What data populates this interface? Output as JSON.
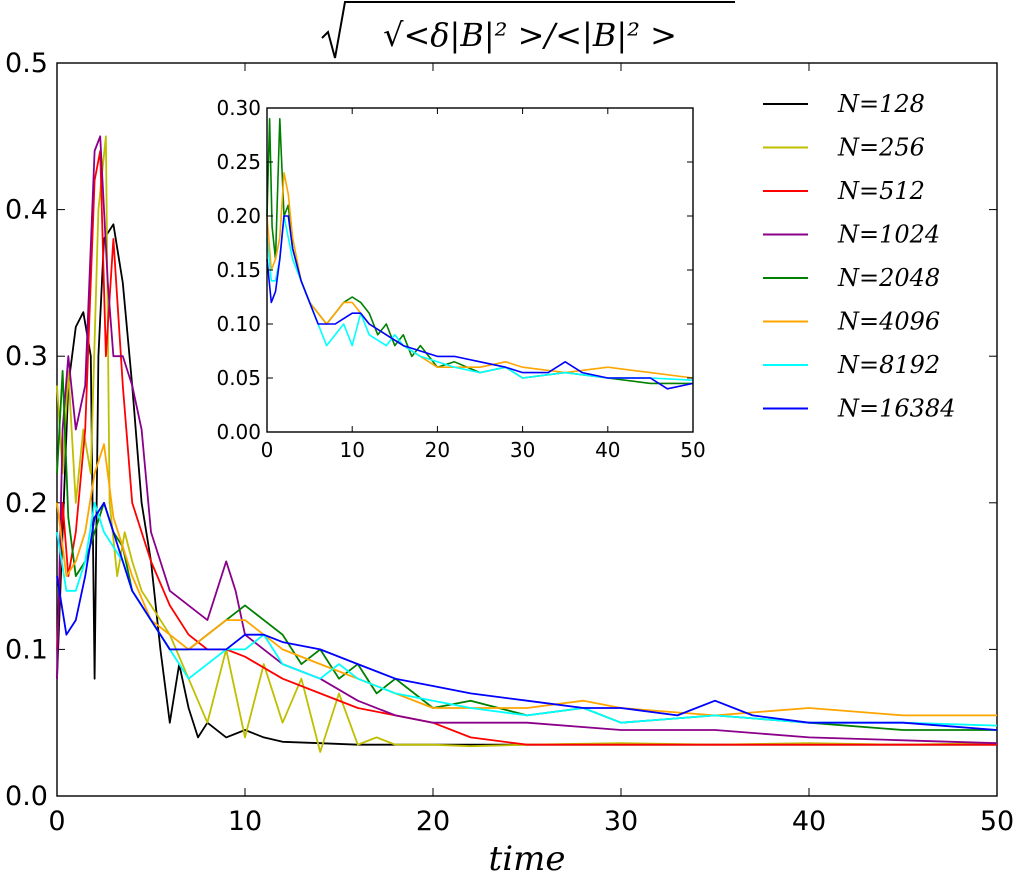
{
  "chart_data": [
    {
      "type": "line",
      "title": "√<δ|B|² >/<|B|² >",
      "xlabel": "time",
      "ylabel": "",
      "xlim": [
        0,
        50
      ],
      "ylim": [
        0,
        0.5
      ],
      "xticks": [
        "0",
        "10",
        "20",
        "30",
        "40",
        "50"
      ],
      "yticks": [
        "0.0",
        "0.1",
        "0.2",
        "0.3",
        "0.4",
        "0.5"
      ],
      "grid": false,
      "legend_position": "top-right",
      "series": [
        {
          "name": "N=128",
          "color": "#000000",
          "x": [
            0,
            0.3,
            0.6,
            1.0,
            1.4,
            1.8,
            2.0,
            2.2,
            2.5,
            3.0,
            3.5,
            4.0,
            4.5,
            5.0,
            5.5,
            6.0,
            6.5,
            7.0,
            7.5,
            8,
            9,
            10,
            11,
            12,
            14,
            16,
            20,
            25,
            30,
            40,
            50
          ],
          "y": [
            0.08,
            0.18,
            0.28,
            0.32,
            0.33,
            0.3,
            0.08,
            0.3,
            0.38,
            0.39,
            0.35,
            0.28,
            0.2,
            0.16,
            0.1,
            0.05,
            0.09,
            0.06,
            0.04,
            0.05,
            0.04,
            0.045,
            0.04,
            0.037,
            0.036,
            0.035,
            0.035,
            0.035,
            0.035,
            0.035,
            0.035
          ]
        },
        {
          "name": "N=256",
          "color": "#bfbf00",
          "x": [
            0,
            0.3,
            0.6,
            1.0,
            1.4,
            1.8,
            2.2,
            2.6,
            2.8,
            3.2,
            3.6,
            4.0,
            4.5,
            5.0,
            6.0,
            7.0,
            8.0,
            9.0,
            10,
            11,
            12,
            13,
            14,
            15,
            16,
            17,
            18,
            20,
            22,
            25,
            30,
            35,
            40,
            45,
            50
          ],
          "y": [
            0.28,
            0.22,
            0.29,
            0.2,
            0.25,
            0.22,
            0.4,
            0.45,
            0.2,
            0.15,
            0.18,
            0.16,
            0.14,
            0.13,
            0.11,
            0.08,
            0.05,
            0.1,
            0.04,
            0.09,
            0.05,
            0.08,
            0.03,
            0.07,
            0.035,
            0.04,
            0.035,
            0.035,
            0.034,
            0.035,
            0.036,
            0.035,
            0.036,
            0.035,
            0.036
          ]
        },
        {
          "name": "N=512",
          "color": "#ff0000",
          "x": [
            0,
            0.3,
            0.6,
            1.0,
            1.5,
            2.0,
            2.3,
            2.6,
            3.0,
            3.5,
            4.0,
            5.0,
            6.0,
            7.0,
            8.0,
            9.0,
            10,
            12,
            14,
            16,
            18,
            20,
            22,
            25,
            30,
            40,
            50
          ],
          "y": [
            0.1,
            0.2,
            0.15,
            0.18,
            0.25,
            0.42,
            0.44,
            0.3,
            0.38,
            0.28,
            0.2,
            0.16,
            0.13,
            0.11,
            0.1,
            0.1,
            0.095,
            0.08,
            0.07,
            0.06,
            0.055,
            0.05,
            0.04,
            0.035,
            0.035,
            0.035,
            0.035
          ]
        },
        {
          "name": "N=1024",
          "color": "#8b008b",
          "x": [
            0,
            0.3,
            0.6,
            1.0,
            1.5,
            2.0,
            2.3,
            2.7,
            3.0,
            3.5,
            4.0,
            4.5,
            5.0,
            5.5,
            6.0,
            7.0,
            8.0,
            8.5,
            9.0,
            9.5,
            10,
            11,
            12,
            14,
            16,
            18,
            20,
            22,
            25,
            30,
            35,
            40,
            45,
            50
          ],
          "y": [
            0.08,
            0.25,
            0.3,
            0.25,
            0.28,
            0.44,
            0.45,
            0.35,
            0.3,
            0.3,
            0.28,
            0.25,
            0.18,
            0.16,
            0.14,
            0.13,
            0.12,
            0.14,
            0.16,
            0.14,
            0.11,
            0.1,
            0.09,
            0.08,
            0.065,
            0.055,
            0.05,
            0.05,
            0.05,
            0.045,
            0.045,
            0.04,
            0.038,
            0.036
          ]
        },
        {
          "name": "N=2048",
          "color": "#008000",
          "x": [
            0,
            0.3,
            0.6,
            1.0,
            1.5,
            2.0,
            2.5,
            3.0,
            3.5,
            4.0,
            5.0,
            6.0,
            7.0,
            8.0,
            9.0,
            10,
            11,
            12,
            13,
            14,
            15,
            16,
            17,
            18,
            20,
            22,
            25,
            28,
            30,
            35,
            40,
            45,
            50
          ],
          "y": [
            0.22,
            0.29,
            0.19,
            0.15,
            0.16,
            0.18,
            0.2,
            0.18,
            0.17,
            0.14,
            0.12,
            0.1,
            0.1,
            0.11,
            0.12,
            0.13,
            0.12,
            0.11,
            0.09,
            0.1,
            0.08,
            0.09,
            0.07,
            0.08,
            0.06,
            0.065,
            0.055,
            0.06,
            0.05,
            0.055,
            0.05,
            0.045,
            0.045
          ]
        },
        {
          "name": "N=4096",
          "color": "#ffa500",
          "x": [
            0,
            0.5,
            1.0,
            1.5,
            2.0,
            2.5,
            3.0,
            3.5,
            4.0,
            5.0,
            6.0,
            7.0,
            8.0,
            9.0,
            10,
            11,
            12,
            14,
            16,
            18,
            20,
            22,
            25,
            28,
            30,
            35,
            40,
            45,
            50
          ],
          "y": [
            0.2,
            0.15,
            0.16,
            0.18,
            0.22,
            0.24,
            0.19,
            0.17,
            0.15,
            0.12,
            0.11,
            0.1,
            0.11,
            0.12,
            0.12,
            0.11,
            0.1,
            0.09,
            0.08,
            0.07,
            0.06,
            0.06,
            0.06,
            0.065,
            0.06,
            0.055,
            0.06,
            0.055,
            0.055
          ]
        },
        {
          "name": "N=8192",
          "color": "#00ffff",
          "x": [
            0,
            0.5,
            1.0,
            1.5,
            2.0,
            2.5,
            3.0,
            3.5,
            4.0,
            5.0,
            6.0,
            7.0,
            8.0,
            9.0,
            10,
            11,
            12,
            14,
            15,
            16,
            18,
            20,
            22,
            25,
            28,
            30,
            35,
            40,
            45,
            50
          ],
          "y": [
            0.18,
            0.14,
            0.14,
            0.16,
            0.2,
            0.18,
            0.17,
            0.16,
            0.14,
            0.12,
            0.1,
            0.08,
            0.09,
            0.1,
            0.1,
            0.11,
            0.09,
            0.08,
            0.09,
            0.08,
            0.07,
            0.065,
            0.06,
            0.055,
            0.06,
            0.05,
            0.055,
            0.05,
            0.05,
            0.048
          ]
        },
        {
          "name": "N=16384",
          "color": "#0000ff",
          "x": [
            0,
            0.5,
            1.0,
            1.5,
            2.0,
            2.5,
            3.0,
            3.5,
            4.0,
            5.0,
            6.0,
            7.0,
            8.0,
            9.0,
            10,
            11,
            12,
            14,
            16,
            18,
            20,
            22,
            25,
            28,
            30,
            33,
            35,
            37,
            40,
            45,
            50
          ],
          "y": [
            0.15,
            0.11,
            0.12,
            0.15,
            0.19,
            0.2,
            0.18,
            0.16,
            0.14,
            0.12,
            0.1,
            0.1,
            0.1,
            0.1,
            0.11,
            0.11,
            0.105,
            0.1,
            0.09,
            0.08,
            0.075,
            0.07,
            0.065,
            0.06,
            0.06,
            0.055,
            0.065,
            0.055,
            0.05,
            0.05,
            0.045
          ]
        }
      ]
    },
    {
      "type": "line",
      "title": "",
      "xlabel": "",
      "ylabel": "",
      "xlim": [
        0,
        50
      ],
      "ylim": [
        0,
        0.3
      ],
      "xticks": [
        "0",
        "10",
        "20",
        "30",
        "40",
        "50"
      ],
      "yticks": [
        "0.00",
        "0.05",
        "0.10",
        "0.15",
        "0.20",
        "0.25",
        "0.30"
      ],
      "grid": false,
      "position_in_main": "inset",
      "series": [
        {
          "name": "N=2048",
          "color": "#008000",
          "x": [
            0,
            0.3,
            0.6,
            1.0,
            1.5,
            2.0,
            2.5,
            3.0,
            4.0,
            5.0,
            6.0,
            7.0,
            8.0,
            9.0,
            10,
            11,
            12,
            13,
            14,
            15,
            16,
            17,
            18,
            20,
            22,
            25,
            28,
            30,
            35,
            40,
            45,
            50
          ],
          "y": [
            0.2,
            0.29,
            0.19,
            0.16,
            0.29,
            0.2,
            0.21,
            0.17,
            0.14,
            0.12,
            0.11,
            0.1,
            0.11,
            0.12,
            0.125,
            0.12,
            0.11,
            0.09,
            0.1,
            0.08,
            0.09,
            0.07,
            0.08,
            0.06,
            0.065,
            0.055,
            0.06,
            0.05,
            0.055,
            0.05,
            0.045,
            0.045
          ]
        },
        {
          "name": "N=4096",
          "color": "#ffa500",
          "x": [
            0,
            0.5,
            1.0,
            1.5,
            2.0,
            2.5,
            3.0,
            4.0,
            5.0,
            6.0,
            7.0,
            8.0,
            9.0,
            10,
            11,
            12,
            14,
            16,
            18,
            20,
            22,
            25,
            28,
            30,
            35,
            40,
            45,
            50
          ],
          "y": [
            0.2,
            0.15,
            0.16,
            0.18,
            0.24,
            0.22,
            0.18,
            0.14,
            0.12,
            0.11,
            0.1,
            0.11,
            0.12,
            0.12,
            0.11,
            0.1,
            0.09,
            0.08,
            0.07,
            0.06,
            0.06,
            0.06,
            0.065,
            0.06,
            0.055,
            0.06,
            0.055,
            0.05
          ]
        },
        {
          "name": "N=8192",
          "color": "#00ffff",
          "x": [
            0,
            0.5,
            1.0,
            1.5,
            2.0,
            2.5,
            3.0,
            4.0,
            5.0,
            6.0,
            7.0,
            8.0,
            9.0,
            10,
            11,
            12,
            14,
            15,
            16,
            18,
            20,
            22,
            25,
            28,
            30,
            35,
            40,
            45,
            50
          ],
          "y": [
            0.18,
            0.14,
            0.14,
            0.16,
            0.2,
            0.18,
            0.16,
            0.14,
            0.12,
            0.1,
            0.08,
            0.09,
            0.1,
            0.08,
            0.11,
            0.09,
            0.08,
            0.09,
            0.08,
            0.07,
            0.065,
            0.06,
            0.055,
            0.06,
            0.05,
            0.055,
            0.05,
            0.05,
            0.048
          ]
        },
        {
          "name": "N=16384",
          "color": "#0000ff",
          "x": [
            0,
            0.5,
            1.0,
            1.5,
            2.0,
            2.5,
            3.0,
            4.0,
            5.0,
            6.0,
            7.0,
            8.0,
            9.0,
            10,
            11,
            12,
            14,
            16,
            18,
            20,
            22,
            25,
            28,
            30,
            33,
            35,
            37,
            40,
            45,
            47,
            50
          ],
          "y": [
            0.16,
            0.12,
            0.13,
            0.16,
            0.2,
            0.2,
            0.17,
            0.14,
            0.12,
            0.1,
            0.1,
            0.1,
            0.105,
            0.11,
            0.11,
            0.1,
            0.09,
            0.08,
            0.075,
            0.07,
            0.07,
            0.065,
            0.06,
            0.055,
            0.055,
            0.065,
            0.055,
            0.05,
            0.05,
            0.04,
            0.045
          ]
        }
      ]
    }
  ]
}
